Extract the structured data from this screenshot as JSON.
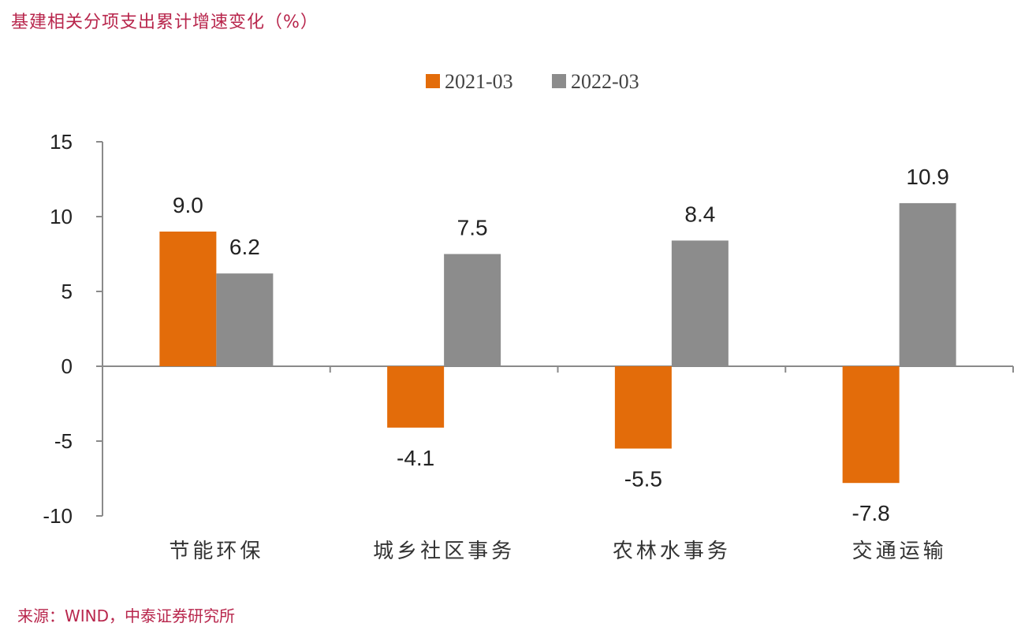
{
  "title": "基建相关分项支出累计增速变化（%）",
  "source": "来源：WIND，中泰证券研究所",
  "colors": {
    "s1": "#e36c0a",
    "s2": "#8c8c8c",
    "title": "#b8264c",
    "axis": "#8a8a8a"
  },
  "chart_data": {
    "type": "bar",
    "title": "基建相关分项支出累计增速变化（%）",
    "categories": [
      "节能环保",
      "城乡社区事务",
      "农林水事务",
      "交通运输"
    ],
    "series": [
      {
        "name": "2021-03",
        "values": [
          9.0,
          -4.1,
          -5.5,
          -7.8
        ],
        "labels": [
          "9.0",
          "-4.1",
          "-5.5",
          "-7.8"
        ]
      },
      {
        "name": "2022-03",
        "values": [
          6.2,
          7.5,
          8.4,
          10.9
        ],
        "labels": [
          "6.2",
          "7.5",
          "8.4",
          "10.9"
        ]
      }
    ],
    "ylim": [
      -10,
      15
    ],
    "yticks": [
      15,
      10,
      5,
      0,
      -5,
      -10
    ],
    "ytick_labels": [
      "15",
      "10",
      "5",
      "0",
      "-5",
      "-10"
    ],
    "xlabel": "",
    "ylabel": "",
    "legend": "top-center",
    "grid": false
  }
}
